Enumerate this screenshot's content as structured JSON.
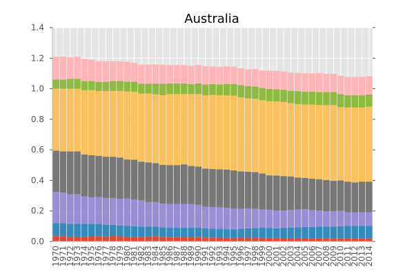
{
  "chart_data": {
    "type": "bar",
    "stacked": true,
    "title": "Australia",
    "xlabel": "",
    "ylabel": "",
    "ylim": [
      0,
      1.4
    ],
    "yticks": [
      "0.0",
      "0.2",
      "0.4",
      "0.6",
      "0.8",
      "1.0",
      "1.2",
      "1.4"
    ],
    "grid": true,
    "legend": "none",
    "categories": [
      "1970",
      "1971",
      "1972",
      "1973",
      "1974",
      "1975",
      "1976",
      "1977",
      "1978",
      "1979",
      "1980",
      "1981",
      "1982",
      "1983",
      "1984",
      "1985",
      "1986",
      "1987",
      "1988",
      "1989",
      "1990",
      "1991",
      "1992",
      "1993",
      "1994",
      "1995",
      "1996",
      "1997",
      "1998",
      "1999",
      "2000",
      "2001",
      "2002",
      "2003",
      "2004",
      "2005",
      "2006",
      "2007",
      "2008",
      "2009",
      "2010",
      "2011",
      "2012",
      "2013",
      "2014"
    ],
    "series": [
      {
        "color": "#e24a33",
        "values": [
          0.035,
          0.035,
          0.032,
          0.032,
          0.032,
          0.034,
          0.035,
          0.033,
          0.036,
          0.034,
          0.032,
          0.03,
          0.03,
          0.033,
          0.035,
          0.03,
          0.028,
          0.028,
          0.027,
          0.027,
          0.028,
          0.026,
          0.026,
          0.025,
          0.024,
          0.024,
          0.025,
          0.025,
          0.025,
          0.024,
          0.024,
          0.024,
          0.023,
          0.023,
          0.023,
          0.023,
          0.022,
          0.022,
          0.022,
          0.022,
          0.022,
          0.022,
          0.022,
          0.022,
          0.022
        ]
      },
      {
        "color": "#348abd",
        "values": [
          0.085,
          0.085,
          0.083,
          0.083,
          0.083,
          0.081,
          0.08,
          0.077,
          0.074,
          0.071,
          0.07,
          0.07,
          0.068,
          0.065,
          0.063,
          0.062,
          0.062,
          0.062,
          0.063,
          0.063,
          0.062,
          0.061,
          0.059,
          0.058,
          0.057,
          0.056,
          0.059,
          0.062,
          0.064,
          0.066,
          0.064,
          0.063,
          0.065,
          0.068,
          0.071,
          0.073,
          0.074,
          0.076,
          0.076,
          0.076,
          0.078,
          0.08,
          0.08,
          0.08,
          0.08
        ]
      },
      {
        "color": "#988ed5",
        "values": [
          0.205,
          0.2,
          0.195,
          0.195,
          0.18,
          0.175,
          0.175,
          0.175,
          0.175,
          0.175,
          0.18,
          0.175,
          0.17,
          0.16,
          0.16,
          0.155,
          0.155,
          0.155,
          0.155,
          0.155,
          0.15,
          0.14,
          0.14,
          0.14,
          0.14,
          0.135,
          0.13,
          0.13,
          0.125,
          0.12,
          0.12,
          0.115,
          0.115,
          0.115,
          0.115,
          0.115,
          0.11,
          0.105,
          0.1,
          0.1,
          0.1,
          0.09,
          0.09,
          0.09,
          0.09
        ]
      },
      {
        "color": "#777777",
        "values": [
          0.27,
          0.27,
          0.28,
          0.28,
          0.275,
          0.275,
          0.27,
          0.27,
          0.27,
          0.27,
          0.255,
          0.26,
          0.255,
          0.26,
          0.255,
          0.255,
          0.255,
          0.255,
          0.26,
          0.25,
          0.25,
          0.25,
          0.25,
          0.25,
          0.25,
          0.25,
          0.245,
          0.24,
          0.24,
          0.235,
          0.225,
          0.23,
          0.225,
          0.22,
          0.21,
          0.205,
          0.205,
          0.205,
          0.205,
          0.2,
          0.2,
          0.2,
          0.195,
          0.2,
          0.2
        ]
      },
      {
        "color": "#fbc15e",
        "values": [
          0.405,
          0.41,
          0.41,
          0.41,
          0.42,
          0.425,
          0.425,
          0.43,
          0.43,
          0.435,
          0.445,
          0.445,
          0.445,
          0.45,
          0.45,
          0.455,
          0.465,
          0.465,
          0.46,
          0.47,
          0.475,
          0.48,
          0.485,
          0.485,
          0.485,
          0.49,
          0.485,
          0.48,
          0.48,
          0.48,
          0.485,
          0.485,
          0.485,
          0.48,
          0.48,
          0.48,
          0.485,
          0.485,
          0.49,
          0.495,
          0.48,
          0.485,
          0.49,
          0.485,
          0.49
        ]
      },
      {
        "color": "#8eba42",
        "values": [
          0.06,
          0.06,
          0.065,
          0.065,
          0.06,
          0.06,
          0.06,
          0.06,
          0.065,
          0.065,
          0.065,
          0.065,
          0.065,
          0.065,
          0.07,
          0.075,
          0.07,
          0.07,
          0.07,
          0.065,
          0.07,
          0.07,
          0.07,
          0.07,
          0.075,
          0.075,
          0.08,
          0.08,
          0.08,
          0.08,
          0.08,
          0.08,
          0.08,
          0.08,
          0.085,
          0.085,
          0.085,
          0.085,
          0.085,
          0.085,
          0.085,
          0.08,
          0.08,
          0.08,
          0.08
        ]
      },
      {
        "color": "#ffb5b8",
        "values": [
          0.15,
          0.15,
          0.14,
          0.145,
          0.145,
          0.14,
          0.135,
          0.135,
          0.13,
          0.13,
          0.13,
          0.125,
          0.125,
          0.125,
          0.125,
          0.125,
          0.12,
          0.12,
          0.12,
          0.12,
          0.12,
          0.12,
          0.115,
          0.115,
          0.115,
          0.115,
          0.11,
          0.11,
          0.115,
          0.115,
          0.12,
          0.12,
          0.12,
          0.12,
          0.12,
          0.12,
          0.12,
          0.125,
          0.12,
          0.12,
          0.12,
          0.12,
          0.12,
          0.12,
          0.12
        ]
      }
    ]
  }
}
